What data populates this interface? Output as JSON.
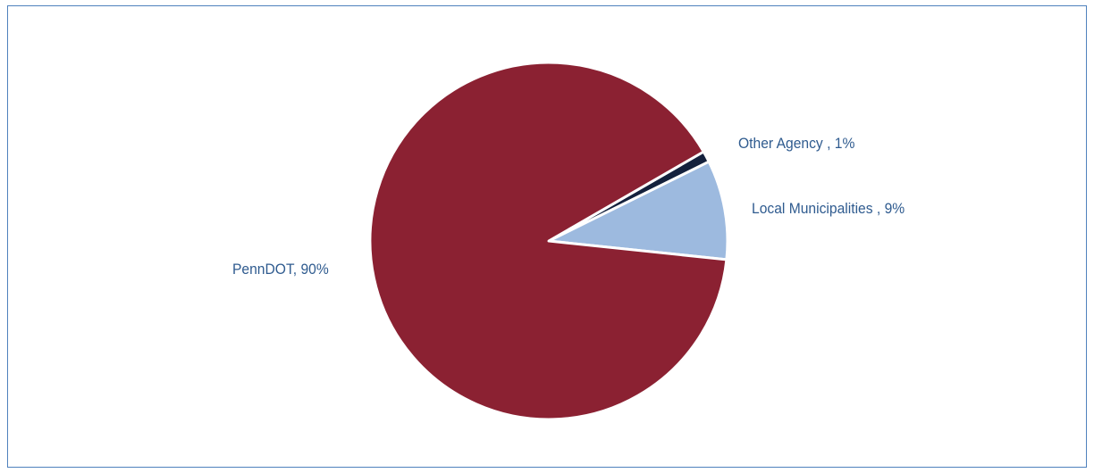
{
  "chart_data": {
    "type": "pie",
    "title": "",
    "slices": [
      {
        "label": "Local Municipalities",
        "display": "Local Municipalities , 9%",
        "value": 9,
        "color": "#9dbadf"
      },
      {
        "label": "Other Agency",
        "display": "Other Agency , 1%",
        "value": 1,
        "color": "#14213d"
      },
      {
        "label": "PennDOT",
        "display": "PennDOT, 90%",
        "value": 90,
        "color": "#8b2132"
      }
    ],
    "legend": "none"
  }
}
